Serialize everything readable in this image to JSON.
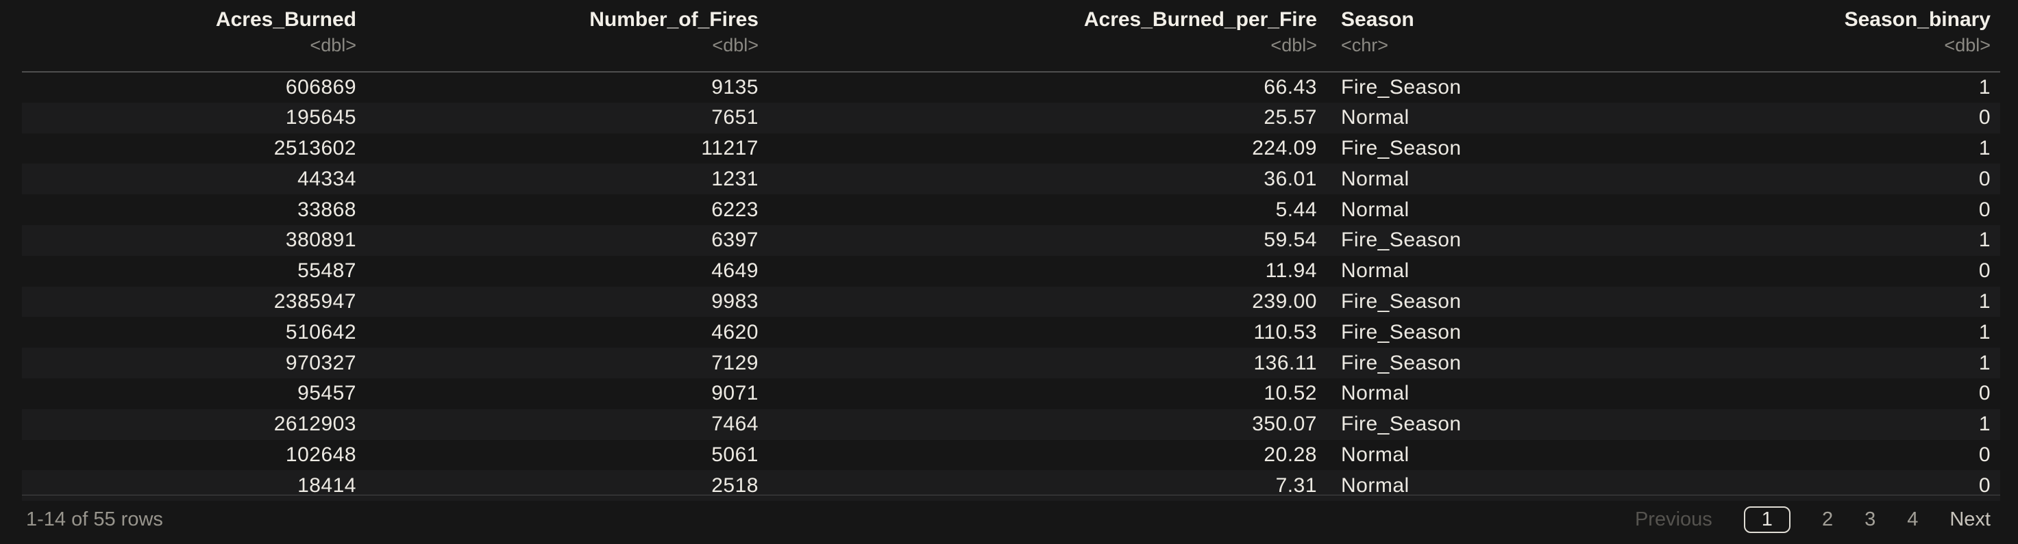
{
  "colors": {
    "background": "#161616",
    "row_stripe": "#1c1c1d",
    "body_text": "#edeae3",
    "header_text": "#f2efe8",
    "type_text": "#8b8983",
    "muted_text": "#98958d",
    "header_separator": "#4f4f4f",
    "footer_separator": "#464646",
    "active_page_border": "#dfdcd4"
  },
  "table": {
    "columns": [
      {
        "label": "Acres_Burned",
        "type": "<dbl>",
        "align": "right"
      },
      {
        "label": "Number_of_Fires",
        "type": "<dbl>",
        "align": "right"
      },
      {
        "label": "Acres_Burned_per_Fire",
        "type": "<dbl>",
        "align": "right"
      },
      {
        "label": "Season",
        "type": "<chr>",
        "align": "left"
      },
      {
        "label": "Season_binary",
        "type": "<dbl>",
        "align": "right"
      }
    ],
    "rows": [
      [
        "606869",
        "9135",
        "66.43",
        "Fire_Season",
        "1"
      ],
      [
        "195645",
        "7651",
        "25.57",
        "Normal",
        "0"
      ],
      [
        "2513602",
        "11217",
        "224.09",
        "Fire_Season",
        "1"
      ],
      [
        "44334",
        "1231",
        "36.01",
        "Normal",
        "0"
      ],
      [
        "33868",
        "6223",
        "5.44",
        "Normal",
        "0"
      ],
      [
        "380891",
        "6397",
        "59.54",
        "Fire_Season",
        "1"
      ],
      [
        "55487",
        "4649",
        "11.94",
        "Normal",
        "0"
      ],
      [
        "2385947",
        "9983",
        "239.00",
        "Fire_Season",
        "1"
      ],
      [
        "510642",
        "4620",
        "110.53",
        "Fire_Season",
        "1"
      ],
      [
        "970327",
        "7129",
        "136.11",
        "Fire_Season",
        "1"
      ],
      [
        "95457",
        "9071",
        "10.52",
        "Normal",
        "0"
      ],
      [
        "2612903",
        "7464",
        "350.07",
        "Fire_Season",
        "1"
      ],
      [
        "102648",
        "5061",
        "20.28",
        "Normal",
        "0"
      ],
      [
        "18414",
        "2518",
        "7.31",
        "Normal",
        "0"
      ]
    ]
  },
  "footer": {
    "row_info": "1-14 of 55 rows",
    "pagination": {
      "previous_label": "Previous",
      "next_label": "Next",
      "pages": [
        "1",
        "2",
        "3",
        "4"
      ],
      "active_page": "1"
    }
  }
}
